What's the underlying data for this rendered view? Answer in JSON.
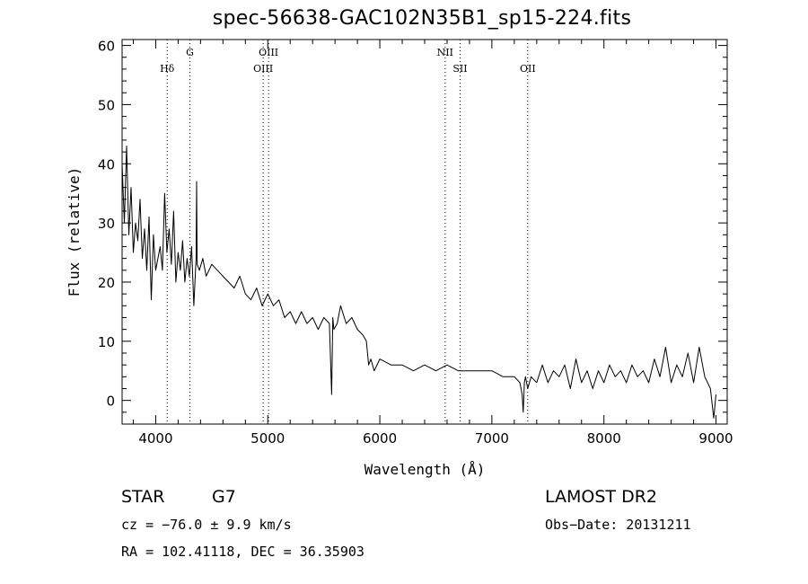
{
  "chart_data": {
    "type": "line",
    "title": "spec-56638-GAC102N35B1_sp15-224.fits",
    "xlabel": "Wavelength (Å)",
    "ylabel": "Flux (relative)",
    "xlim": [
      3700,
      9100
    ],
    "ylim": [
      -4,
      61
    ],
    "xticks": [
      4000,
      5000,
      6000,
      7000,
      8000,
      9000
    ],
    "yticks": [
      0,
      10,
      20,
      30,
      40,
      50,
      60
    ],
    "grid": false,
    "line_markers": [
      {
        "label": "Hδ",
        "x": 4102,
        "row": 1
      },
      {
        "label": "G",
        "x": 4305,
        "row": 0
      },
      {
        "label": "OIII",
        "x": 4959,
        "row": 1
      },
      {
        "label": "OIII",
        "x": 5007,
        "row": 0
      },
      {
        "label": "NII",
        "x": 6583,
        "row": 0
      },
      {
        "label": "OII",
        "x": 7320,
        "row": 1
      },
      {
        "label": "SII",
        "x": 6716,
        "row": 1
      }
    ],
    "series": [
      {
        "x": [
          3700,
          3720,
          3740,
          3760,
          3780,
          3800,
          3820,
          3840,
          3860,
          3880,
          3900,
          3920,
          3940,
          3960,
          3980,
          4000,
          4020,
          4040,
          4060,
          4080,
          4100,
          4120,
          4140,
          4160,
          4180,
          4200,
          4220,
          4240,
          4260,
          4280,
          4300,
          4320,
          4340,
          4360,
          4365,
          4370,
          4390,
          4420,
          4450,
          4500,
          4550,
          4600,
          4650,
          4700,
          4750,
          4800,
          4850,
          4900,
          4950,
          5000,
          5050,
          5100,
          5150,
          5200,
          5250,
          5300,
          5350,
          5400,
          5450,
          5500,
          5550,
          5570,
          5580,
          5590,
          5620,
          5650,
          5700,
          5750,
          5800,
          5850,
          5880,
          5900,
          5920,
          5950,
          6000,
          6100,
          6200,
          6300,
          6400,
          6500,
          6600,
          6700,
          6800,
          6900,
          7000,
          7100,
          7200,
          7250,
          7270,
          7280,
          7290,
          7300,
          7320,
          7350,
          7400,
          7450,
          7500,
          7550,
          7600,
          7650,
          7700,
          7750,
          7800,
          7850,
          7900,
          7950,
          8000,
          8050,
          8100,
          8150,
          8200,
          8250,
          8300,
          8350,
          8400,
          8450,
          8500,
          8550,
          8600,
          8650,
          8700,
          8750,
          8800,
          8850,
          8900,
          8950,
          8980,
          9000
        ],
        "y": [
          40,
          30,
          43,
          28,
          36,
          25,
          30,
          27,
          34,
          24,
          29,
          22,
          31,
          17,
          28,
          22,
          24,
          26,
          22,
          35,
          25,
          29,
          23,
          32,
          20,
          25,
          22,
          27,
          20,
          24,
          21,
          26,
          16,
          24,
          37,
          23,
          22,
          24,
          21,
          23,
          22,
          21,
          20,
          19,
          21,
          18,
          17,
          19,
          16,
          18,
          16,
          17,
          14,
          15,
          13,
          15,
          13,
          14,
          12,
          14,
          13,
          1,
          14,
          12,
          13,
          16,
          13,
          14,
          12,
          11,
          10,
          6,
          7,
          5,
          7,
          6,
          6,
          5,
          6,
          5,
          6,
          5,
          5,
          5,
          5,
          4,
          4,
          3,
          1,
          -2,
          3,
          4,
          2,
          4,
          3,
          6,
          3,
          5,
          4,
          6,
          2,
          7,
          3,
          5,
          2,
          5,
          3,
          6,
          4,
          5,
          3,
          6,
          4,
          5,
          3,
          7,
          4,
          9,
          3,
          6,
          4,
          8,
          3,
          9,
          4,
          2,
          -3,
          1
        ]
      }
    ]
  },
  "footer": {
    "object_class": "STAR",
    "subclass": "G7",
    "survey": "LAMOST DR2",
    "cz": "cz = −76.0 ± 9.9 km/s",
    "obs_date": "Obs−Date: 20131211",
    "coords": "RA = 102.41118, DEC =  36.35903"
  }
}
